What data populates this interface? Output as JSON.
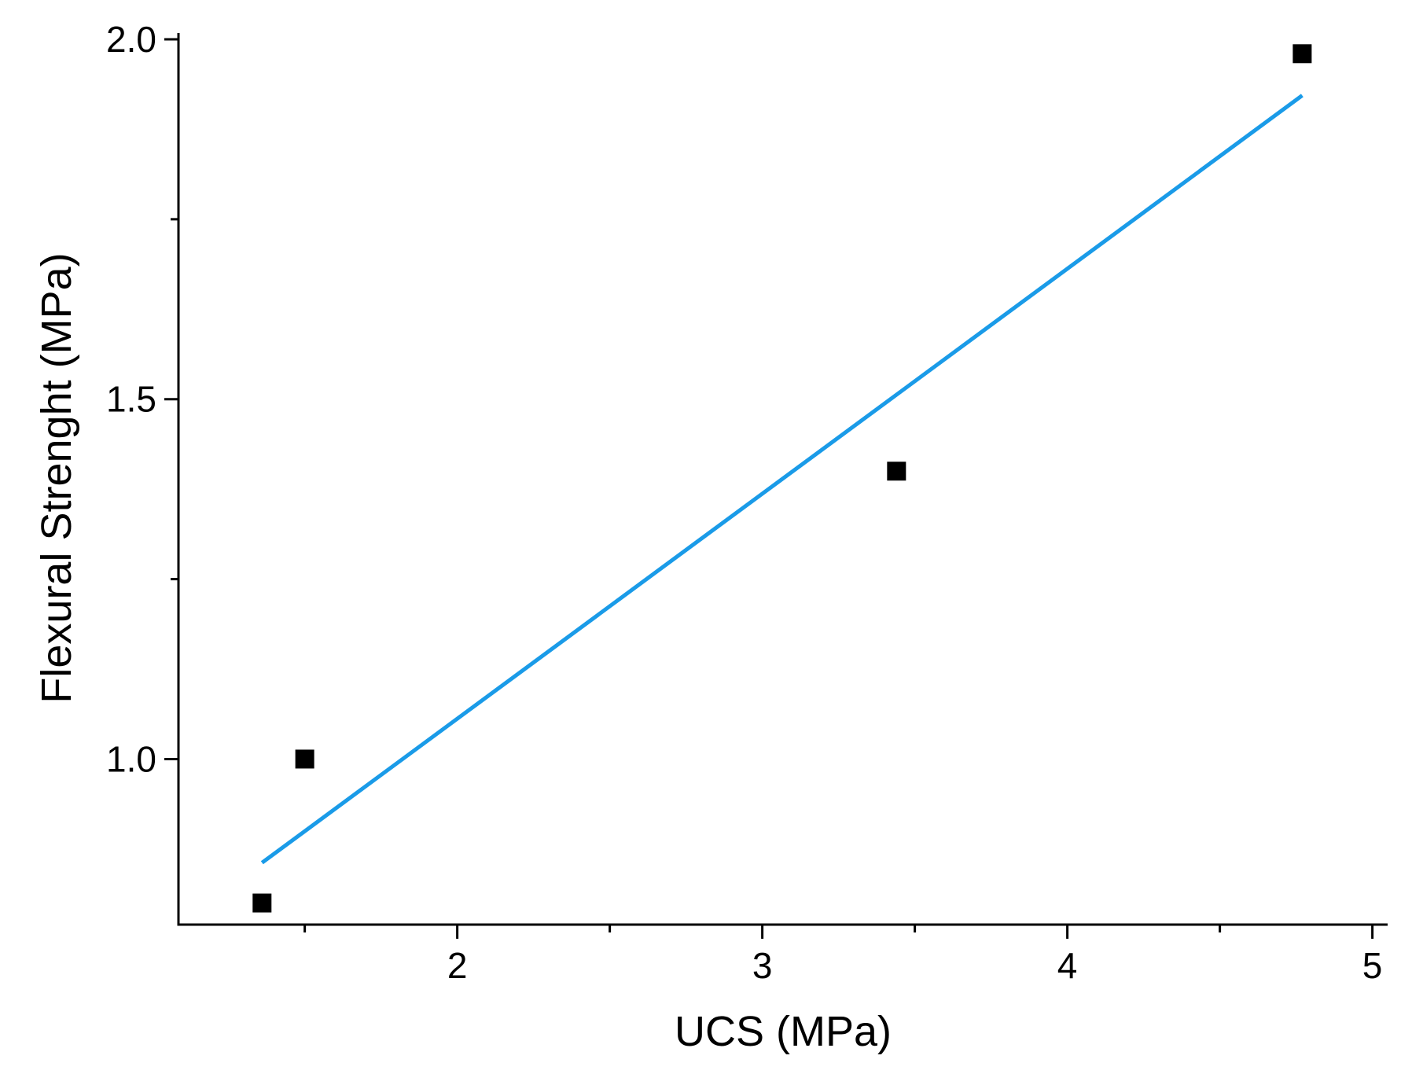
{
  "chart_data": {
    "type": "scatter",
    "xlabel": "UCS (MPa)",
    "ylabel": "Flexural Strenght (MPa)",
    "xlim": [
      1.086,
      5.05
    ],
    "ylim": [
      0.77,
      2.0
    ],
    "xticks": [
      2,
      3,
      4,
      5
    ],
    "yticks": [
      {
        "value": 1.0,
        "label": "1.0"
      },
      {
        "value": 1.5,
        "label": "1.5"
      },
      {
        "value": 2.0,
        "label": "2.0"
      }
    ],
    "xminorticks": [
      1.5,
      2.5,
      3.5,
      4.5
    ],
    "yminorticks": [
      1.25,
      1.75
    ],
    "series": [
      {
        "type": "scatter",
        "color": "#000000",
        "x": [
          1.36,
          1.5,
          3.44,
          4.77
        ],
        "values": [
          0.8,
          1.0,
          1.4,
          1.98
        ]
      },
      {
        "type": "line",
        "color": "#1a9be8",
        "x": [
          1.36,
          4.77
        ],
        "values": [
          0.856,
          1.922
        ]
      }
    ]
  }
}
